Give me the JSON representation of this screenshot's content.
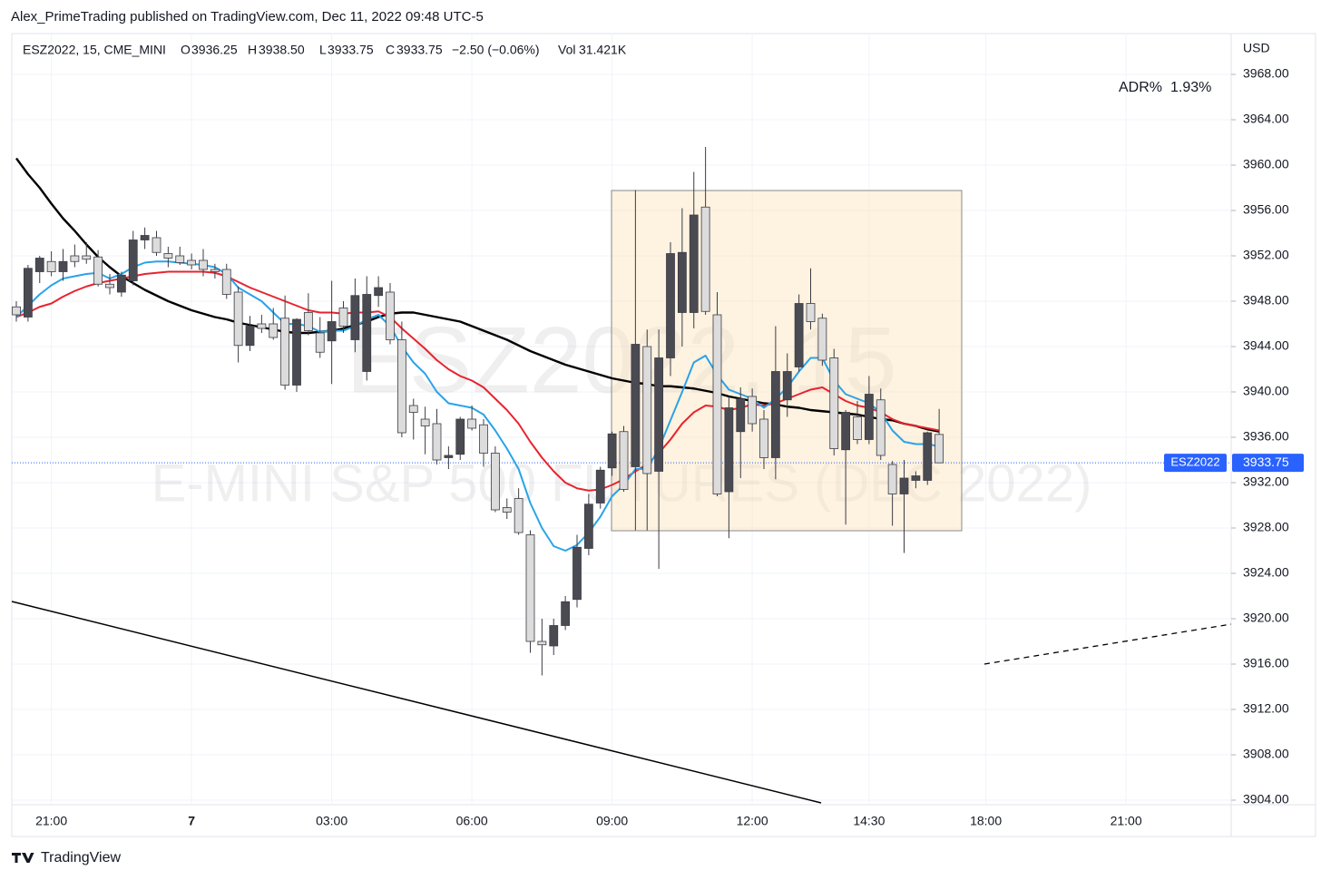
{
  "header": {
    "text": "Alex_PrimeTrading published on TradingView.com, Dec 11, 2022 09:48 UTC-5"
  },
  "legend": {
    "symbol": "ESZ2022, 15, CME_MINI",
    "open_label": "O",
    "open": "3936.25",
    "high_label": "H",
    "high": "3938.50",
    "low_label": "L",
    "low": "3933.75",
    "close_label": "C",
    "close": "3933.75",
    "change": "−2.50 (−0.06%)",
    "volume_label": "Vol",
    "volume": "31.421K"
  },
  "indicator": {
    "label": "ADR%",
    "value": "1.93%"
  },
  "watermark": {
    "symbol": "ESZ2022, 15",
    "description": "E-MINI S&P 500 FUTURES (DEC 2022)"
  },
  "footer": {
    "brand": "TradingView"
  },
  "chart_data": {
    "type": "candlestick",
    "y_unit": "USD",
    "grid": true,
    "up_color": "#4a4a52",
    "down_color": "#dcdcdc",
    "outline_color": "#3c3c44",
    "last_price": 3933.75,
    "last_price_symbol": "ESZ2022",
    "last_price_label": "3933.75",
    "last_price_color": "#2962ff",
    "ylim": [
      3903.6,
      3971.6
    ],
    "yticks": [
      {
        "value": 3904,
        "label": "3904.00"
      },
      {
        "value": 3908,
        "label": "3908.00"
      },
      {
        "value": 3912,
        "label": "3912.00"
      },
      {
        "value": 3916,
        "label": "3916.00"
      },
      {
        "value": 3920,
        "label": "3920.00"
      },
      {
        "value": 3924,
        "label": "3924.00"
      },
      {
        "value": 3928,
        "label": "3928.00"
      },
      {
        "value": 3932,
        "label": "3932.00"
      },
      {
        "value": 3936,
        "label": "3936.00"
      },
      {
        "value": 3940,
        "label": "3940.00"
      },
      {
        "value": 3944,
        "label": "3944.00"
      },
      {
        "value": 3948,
        "label": "3948.00"
      },
      {
        "value": 3952,
        "label": "3952.00"
      },
      {
        "value": 3956,
        "label": "3956.00"
      },
      {
        "value": 3960,
        "label": "3960.00"
      },
      {
        "value": 3964,
        "label": "3964.00"
      },
      {
        "value": 3968,
        "label": "3968.00"
      }
    ],
    "categories": [
      null,
      null,
      null,
      "21:00",
      null,
      null,
      null,
      null,
      null,
      null,
      null,
      null,
      null,
      null,
      null,
      "7",
      null,
      null,
      null,
      null,
      null,
      null,
      null,
      null,
      null,
      null,
      null,
      "03:00",
      null,
      null,
      null,
      null,
      null,
      null,
      null,
      null,
      null,
      null,
      null,
      "06:00",
      null,
      null,
      null,
      null,
      null,
      null,
      null,
      null,
      null,
      null,
      null,
      "09:00",
      null,
      null,
      null,
      null,
      null,
      null,
      null,
      null,
      null,
      null,
      null,
      "12:00",
      null,
      null,
      null,
      null,
      null,
      null,
      null,
      null,
      null,
      "14:30",
      null,
      null,
      null,
      null,
      null,
      null,
      null,
      null,
      null,
      "18:00",
      null,
      null,
      null,
      null,
      null,
      null,
      null,
      null,
      null,
      null,
      null,
      "21:00",
      null,
      null,
      null,
      null,
      null,
      null,
      null,
      null
    ],
    "open": [
      3947.5,
      3946.6,
      3950.6,
      3951.5,
      3950.6,
      3952,
      3952,
      3951.9,
      3949.5,
      3948.8,
      3949.8,
      3953.4,
      3953.6,
      3952.2,
      3952,
      3951.6,
      3951.6,
      3950.8,
      3950.8,
      3948.8,
      3944.1,
      3946,
      3946,
      3946.5,
      3940.6,
      3947,
      3945.2,
      3944.5,
      3947.4,
      3944.6,
      3941.8,
      3948.5,
      3948.8,
      3944.6,
      3938.8,
      3937.6,
      3937.2,
      3934.2,
      3934.5,
      3937.6,
      3937.1,
      3934.6,
      3929.8,
      3930.6,
      3927.4,
      3918,
      3917.6,
      3919.4,
      3921.7,
      3926.2,
      3930.2,
      3933.3,
      3936.5,
      3933.4,
      3944,
      3933,
      3943,
      3947,
      3947,
      3956.3,
      3946.8,
      3931.2,
      3936.5,
      3939.6,
      3937.6,
      3934.2,
      3939.3,
      3942.2,
      3947.8,
      3946.5,
      3943,
      3934.9,
      3937.8,
      3935.8,
      3939.3,
      3933.6,
      3931,
      3932.2,
      3932.2,
      3936.25,
      null,
      null,
      null,
      null,
      null,
      null,
      null,
      null,
      null,
      null,
      null,
      null,
      null,
      null,
      null,
      null,
      null,
      null,
      null,
      null,
      null,
      null,
      null,
      null
    ],
    "high": [
      3948,
      3951.2,
      3952,
      3952.4,
      3952.6,
      3953,
      3953.2,
      3952.5,
      3950.4,
      3950.6,
      3954.2,
      3954.5,
      3954.2,
      3952.8,
      3952.8,
      3952.2,
      3952.6,
      3951.3,
      3951.3,
      3949.3,
      3946.7,
      3946.8,
      3947.4,
      3948.5,
      3946.5,
      3948.7,
      3946.6,
      3949.8,
      3948,
      3950,
      3950.2,
      3950.2,
      3949.6,
      3946.2,
      3939.4,
      3938.7,
      3938.5,
      3935.2,
      3937.8,
      3938.8,
      3937.6,
      3935.2,
      3930.6,
      3931.5,
      3927.8,
      3920,
      3920,
      3922,
      3927.4,
      3931,
      3933.4,
      3936.5,
      3937,
      3957.8,
      3945.5,
      3945.5,
      3953.2,
      3956.2,
      3959.4,
      3961.6,
      3948.8,
      3939.5,
      3940.4,
      3940.3,
      3938.4,
      3945.8,
      3943.4,
      3948.6,
      3950.9,
      3946.9,
      3943.8,
      3938.4,
      3939.2,
      3941.4,
      3940.3,
      3933.9,
      3934,
      3933,
      3936.5,
      3938.5,
      null,
      null,
      null,
      null,
      null,
      null,
      null,
      null,
      null,
      null,
      null,
      null,
      null,
      null,
      null,
      null,
      null,
      null,
      null,
      null,
      null,
      null,
      null,
      null
    ],
    "low": [
      3946.2,
      3946.2,
      3949.6,
      3950.2,
      3949.8,
      3951,
      3951.3,
      3949.3,
      3948.6,
      3948.4,
      3949.4,
      3952.6,
      3952,
      3951,
      3951.2,
      3950.8,
      3950.2,
      3950,
      3948.2,
      3942.6,
      3943.6,
      3945.2,
      3944.6,
      3940.2,
      3940,
      3945,
      3943,
      3940.7,
      3945.2,
      3943.5,
      3941,
      3947.5,
      3944.2,
      3936,
      3935.8,
      3934.5,
      3933.6,
      3933.2,
      3934,
      3936.6,
      3933.4,
      3929.4,
      3928.8,
      3927.4,
      3917,
      3915,
      3916.8,
      3919,
      3921,
      3925.6,
      3929.7,
      3932.6,
      3931.2,
      3927.8,
      3927.8,
      3924.4,
      3941.4,
      3944,
      3945.6,
      3946.8,
      3930.8,
      3927.1,
      3932.4,
      3936.5,
      3933.2,
      3932.3,
      3937.8,
      3941.8,
      3945.5,
      3942.3,
      3934.4,
      3928.3,
      3935.4,
      3935.4,
      3934,
      3928.2,
      3925.8,
      3931.5,
      3931.8,
      3933.75,
      null,
      null,
      null,
      null,
      null,
      null,
      null,
      null,
      null,
      null,
      null,
      null,
      null,
      null,
      null,
      null,
      null,
      null,
      null,
      null,
      null,
      null,
      null,
      null
    ],
    "close": [
      3946.8,
      3950.9,
      3951.8,
      3950.6,
      3951.5,
      3951.5,
      3951.7,
      3949.5,
      3949.2,
      3950.3,
      3953.4,
      3953.8,
      3952.3,
      3951.8,
      3951.4,
      3951.2,
      3950.8,
      3950.6,
      3948.6,
      3944.1,
      3945.8,
      3945.6,
      3944.8,
      3940.6,
      3946.4,
      3945.4,
      3943.5,
      3946.2,
      3945.8,
      3948.5,
      3948.6,
      3949.2,
      3944.6,
      3936.4,
      3938.2,
      3937,
      3934,
      3934.4,
      3937.6,
      3936.8,
      3934.6,
      3929.6,
      3929.4,
      3927.6,
      3918,
      3917.7,
      3919.4,
      3921.5,
      3926.3,
      3930.1,
      3933.1,
      3936.3,
      3931.4,
      3944.2,
      3932.8,
      3943,
      3952.2,
      3952.3,
      3955.6,
      3947.1,
      3931,
      3938.6,
      3939.4,
      3937.2,
      3934.2,
      3941.8,
      3941.8,
      3947.8,
      3946.2,
      3942.8,
      3935,
      3938.2,
      3935.8,
      3939.8,
      3934.4,
      3931,
      3932.4,
      3932.6,
      3936.4,
      3933.75,
      null,
      null,
      null,
      null,
      null,
      null,
      null,
      null,
      null,
      null,
      null,
      null,
      null,
      null,
      null,
      null,
      null,
      null,
      null,
      null,
      null,
      null,
      null,
      null
    ],
    "series": [
      {
        "color": "#000000",
        "values": [
          3960.6,
          3959.2,
          3958,
          3956.6,
          3955.3,
          3954.2,
          3953,
          3951.9,
          3951,
          3950.2,
          3949.6,
          3949,
          3948.5,
          3948,
          3947.6,
          3947.2,
          3946.9,
          3946.6,
          3946.4,
          3946.1,
          3945.9,
          3945.7,
          3945.5,
          3945.3,
          3945.2,
          3945.2,
          3945.3,
          3945.4,
          3945.6,
          3945.9,
          3946.2,
          3946.6,
          3946.9,
          3947,
          3947,
          3946.8,
          3946.6,
          3946.4,
          3946.2,
          3945.8,
          3945.4,
          3945,
          3944.6,
          3944.1,
          3943.6,
          3943.2,
          3942.8,
          3942.4,
          3942.1,
          3941.8,
          3941.5,
          3941.2,
          3941,
          3940.8,
          3940.7,
          3940.5,
          3940.5,
          3940.4,
          3940.3,
          3940.1,
          3939.9,
          3939.6,
          3939.4,
          3939.2,
          3939,
          3938.9,
          3938.7,
          3938.6,
          3938.4,
          3938.3,
          3938.2,
          3938.1,
          3938,
          3937.8,
          3937.6,
          3937.5,
          3937.2,
          3937,
          3936.7,
          3936.5,
          null,
          null,
          null,
          null,
          null,
          null,
          null,
          null,
          null,
          null,
          null,
          null,
          null,
          null,
          null,
          null,
          null,
          null,
          null,
          null,
          null,
          null,
          null,
          null
        ]
      },
      {
        "color": "#e8232f",
        "values": [
          3946.6,
          3947,
          3947.5,
          3947.8,
          3948.4,
          3948.9,
          3949.3,
          3949.6,
          3949.8,
          3950,
          3950.2,
          3950.4,
          3950.5,
          3950.6,
          3950.6,
          3950.6,
          3950.6,
          3950.5,
          3950.2,
          3949.7,
          3949.2,
          3948.8,
          3948.4,
          3948,
          3947.6,
          3947.2,
          3947,
          3947,
          3946.9,
          3947,
          3947,
          3947.1,
          3946.6,
          3945.6,
          3944.7,
          3943.8,
          3942.8,
          3942,
          3941.4,
          3941,
          3940.4,
          3939.4,
          3938.4,
          3937.2,
          3935.6,
          3934.2,
          3933,
          3932,
          3931.5,
          3931.3,
          3931.4,
          3931.8,
          3932.3,
          3933,
          3933.6,
          3934.6,
          3935.8,
          3937.2,
          3938.2,
          3938.8,
          3938.7,
          3938.4,
          3938.6,
          3938.9,
          3938.8,
          3939,
          3939.4,
          3939.8,
          3940.2,
          3940.4,
          3939.8,
          3939.2,
          3938.8,
          3938.6,
          3938.2,
          3937.6,
          3937.2,
          3937,
          3936.8,
          3936.6,
          null,
          null,
          null,
          null,
          null,
          null,
          null,
          null,
          null,
          null,
          null,
          null,
          null,
          null,
          null,
          null,
          null,
          null,
          null,
          null,
          null,
          null,
          null,
          null
        ]
      },
      {
        "color": "#29a3e8",
        "values": [
          3946.6,
          3947.6,
          3948.6,
          3949.4,
          3950,
          3950.2,
          3950.4,
          3950.5,
          3950,
          3950.4,
          3951,
          3951.4,
          3951.5,
          3951.5,
          3951.4,
          3951.3,
          3951.2,
          3951,
          3950.4,
          3949.2,
          3948.6,
          3948,
          3947,
          3946,
          3946,
          3945.8,
          3945.3,
          3945.4,
          3945.4,
          3945.8,
          3946.4,
          3946.8,
          3945.8,
          3944,
          3942.6,
          3941.6,
          3940,
          3939,
          3938.8,
          3938.6,
          3938,
          3936.6,
          3935,
          3933.2,
          3930.2,
          3928,
          3926.4,
          3926,
          3926.5,
          3927.6,
          3929,
          3930.8,
          3931.8,
          3933.2,
          3933.2,
          3935,
          3937.5,
          3940,
          3942.6,
          3943.2,
          3941.5,
          3940.2,
          3939.8,
          3939.4,
          3938.6,
          3939.4,
          3940.4,
          3941.8,
          3943,
          3943,
          3941,
          3939.8,
          3939.4,
          3939,
          3938.2,
          3936.6,
          3935.6,
          3935.4,
          3935.4,
          3935.2,
          null,
          null,
          null,
          null,
          null,
          null,
          null,
          null,
          null,
          null,
          null,
          null,
          null,
          null,
          null,
          null,
          null,
          null,
          null,
          null,
          null,
          null,
          null,
          null
        ]
      }
    ]
  }
}
